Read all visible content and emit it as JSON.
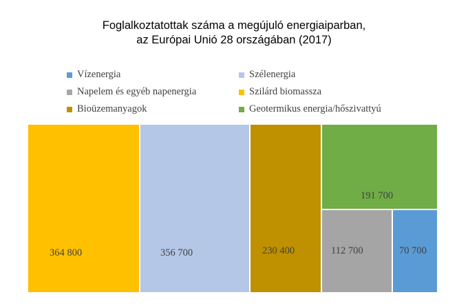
{
  "chart_data": {
    "type": "treemap",
    "title_line1": "Foglalkoztatottak száma a megújuló energiaiparban,",
    "title_line2": "az Európai Unió 28 országában (2017)",
    "legend_placement": "top",
    "series": [
      {
        "name": "Vízenergia",
        "value": 70700,
        "label": "70 700",
        "color": "#5b9bd5"
      },
      {
        "name": "Szélenergia",
        "value": 356700,
        "label": "356 700",
        "color": "#b4c7e7"
      },
      {
        "name": "Napelem és egyéb napenergia",
        "value": 112700,
        "label": "112 700",
        "color": "#a5a5a5"
      },
      {
        "name": "Szilárd biomassza",
        "value": 364800,
        "label": "364 800",
        "color": "#ffc000"
      },
      {
        "name": "Bioüzemanyagok",
        "value": 230400,
        "label": "230 400",
        "color": "#bf9000"
      },
      {
        "name": "Geotermikus energia/hőszivattyú",
        "value": 191700,
        "label": "191 700",
        "color": "#70ad47"
      }
    ]
  }
}
